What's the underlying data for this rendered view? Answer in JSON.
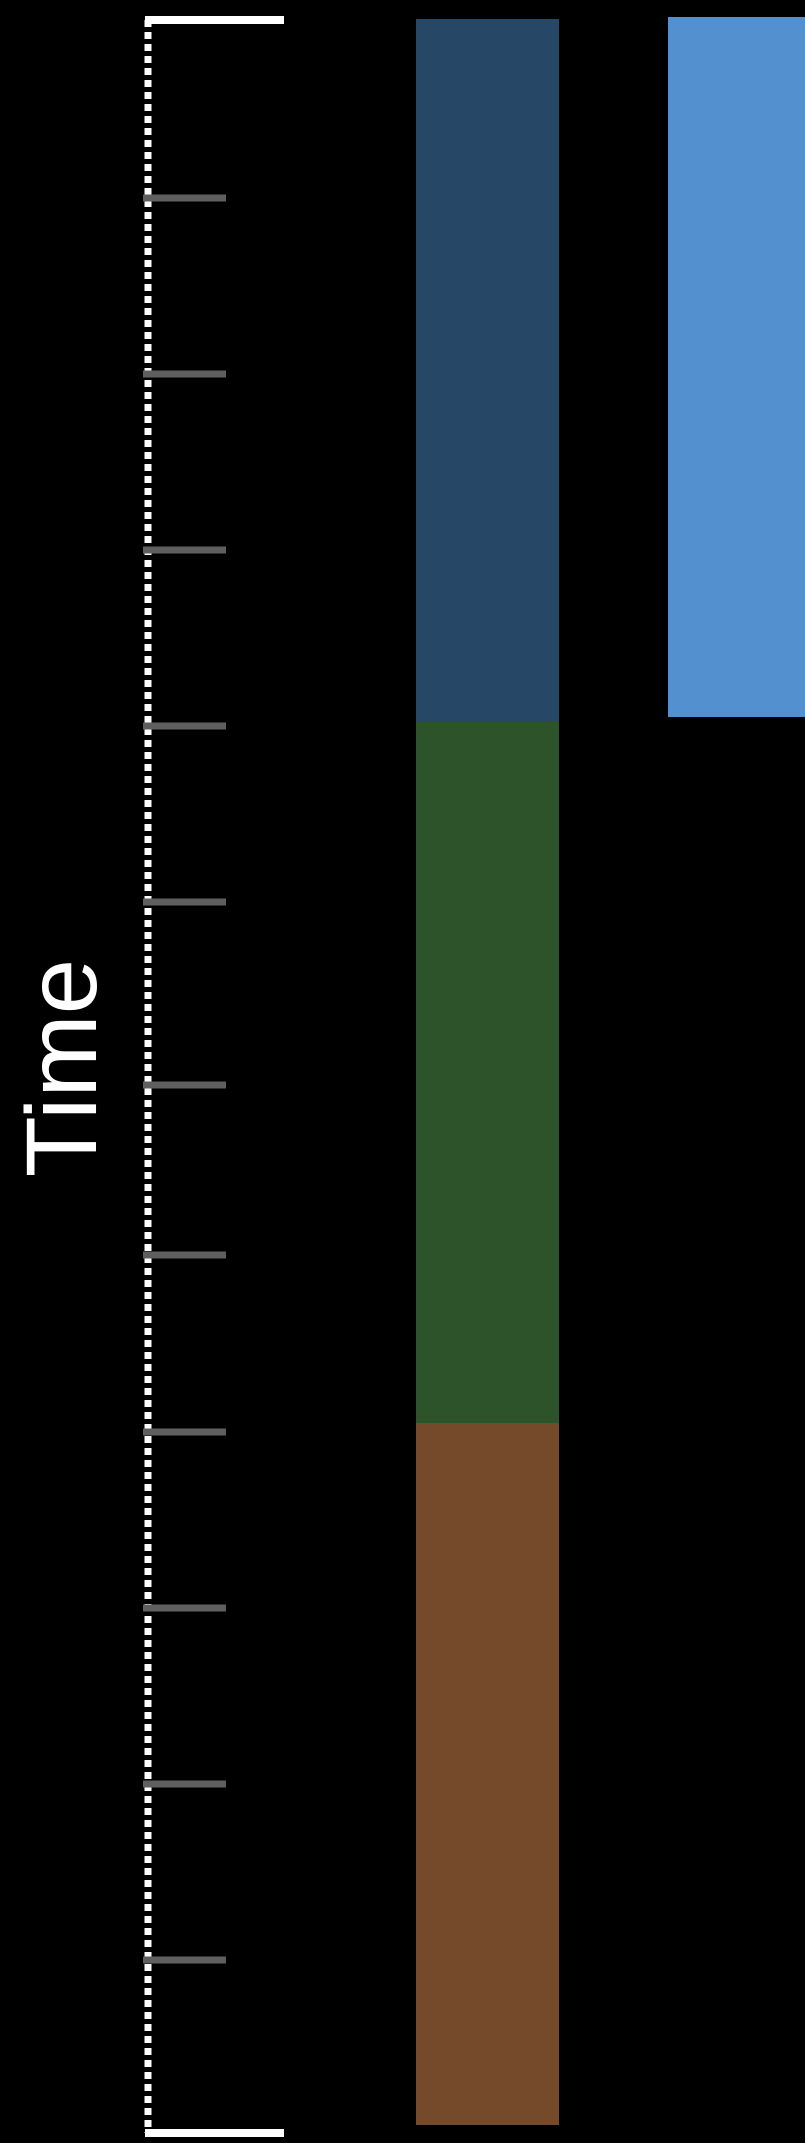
{
  "axis": {
    "label": "Time",
    "tick_count": 11,
    "colors": {
      "background": "#000000",
      "axis_line": "#ffffff",
      "tick": "#5f5f5f"
    }
  },
  "timeline_bars": [
    {
      "name": "blue-segment",
      "color": "#264766",
      "span": [
        0,
        4
      ]
    },
    {
      "name": "green-segment",
      "color": "#2d532b",
      "span": [
        4,
        8
      ]
    },
    {
      "name": "brown-segment",
      "color": "#744a2b",
      "span": [
        8,
        12
      ]
    }
  ],
  "highlight_bar": {
    "name": "light-blue-segment",
    "color": "#5290cf",
    "span": [
      0,
      4
    ]
  }
}
